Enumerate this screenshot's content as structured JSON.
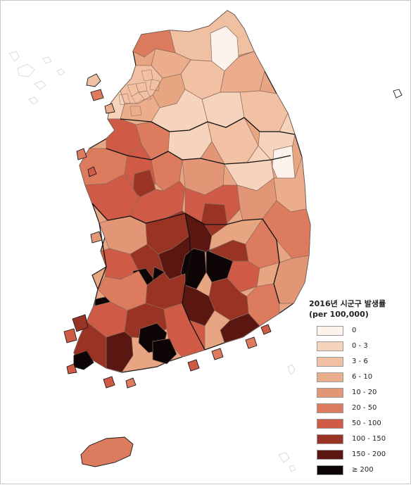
{
  "legend": {
    "title_line1": "2016년 시군구 발생률",
    "title_line2": "(per 100,000)",
    "classes": [
      {
        "label": "0",
        "color": "#fdf3ec"
      },
      {
        "label": "0 - 3",
        "color": "#f6d3bd"
      },
      {
        "label": "3 - 6",
        "color": "#f2c0a3"
      },
      {
        "label": "6 - 10",
        "color": "#ecad8c"
      },
      {
        "label": "10 - 20",
        "color": "#e29676"
      },
      {
        "label": "20 - 50",
        "color": "#dd7b5e"
      },
      {
        "label": "50 - 100",
        "color": "#cf5a46"
      },
      {
        "label": "100 - 150",
        "color": "#993324"
      },
      {
        "label": "150 - 200",
        "color": "#5a1711"
      },
      {
        "label": "≥ 200",
        "color": "#0d0505"
      }
    ]
  }
}
